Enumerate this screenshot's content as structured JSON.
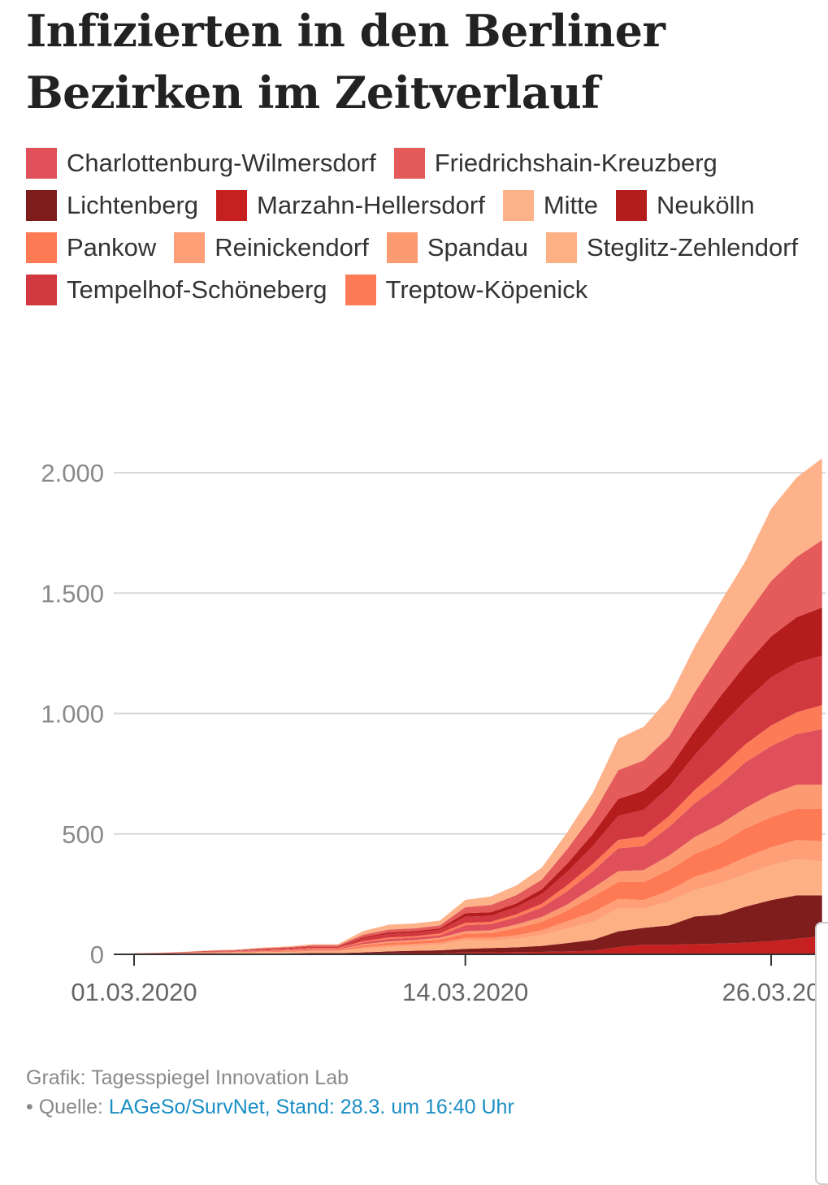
{
  "title": "Infizierten in den Berliner Bezirken im Zeitverlauf",
  "legend": [
    {
      "name": "Charlottenburg-Wilmersdorf",
      "color": "#e0505a"
    },
    {
      "name": "Friedrichshain-Kreuzberg",
      "color": "#e55a5a"
    },
    {
      "name": "Lichtenberg",
      "color": "#7f1d1d"
    },
    {
      "name": "Marzahn-Hellersdorf",
      "color": "#c62020"
    },
    {
      "name": "Mitte",
      "color": "#fdb28a"
    },
    {
      "name": "Neukölln",
      "color": "#b51c1c"
    },
    {
      "name": "Pankow",
      "color": "#fe7a55"
    },
    {
      "name": "Reinickendorf",
      "color": "#fe9f78"
    },
    {
      "name": "Spandau",
      "color": "#fc9a72"
    },
    {
      "name": "Steglitz-Zehlendorf",
      "color": "#fdb083"
    },
    {
      "name": "Tempelhof-Schöneberg",
      "color": "#d2383f"
    },
    {
      "name": "Treptow-Köpenick",
      "color": "#fd7b57"
    }
  ],
  "chart_data": {
    "type": "area",
    "stacked": true,
    "grid": true,
    "x_ticks": [
      "01.03.2020",
      "14.03.2020",
      "26.03.20"
    ],
    "ylim": [
      0,
      2400
    ],
    "y_ticks": [
      0,
      500,
      1000,
      1500,
      2000
    ],
    "y_tick_labels": [
      "0",
      "500",
      "1.000",
      "1.500",
      "2.000"
    ],
    "x": [
      "01.03.2020",
      "02.03.2020",
      "03.03.2020",
      "04.03.2020",
      "05.03.2020",
      "06.03.2020",
      "07.03.2020",
      "08.03.2020",
      "09.03.2020",
      "10.03.2020",
      "11.03.2020",
      "12.03.2020",
      "13.03.2020",
      "14.03.2020",
      "15.03.2020",
      "16.03.2020",
      "17.03.2020",
      "18.03.2020",
      "19.03.2020",
      "20.03.2020",
      "21.03.2020",
      "22.03.2020",
      "23.03.2020",
      "24.03.2020",
      "25.03.2020",
      "26.03.2020",
      "27.03.2020",
      "28.03.2020"
    ],
    "series": [
      {
        "name": "Marzahn-Hellersdorf",
        "values": [
          0,
          0,
          0,
          1,
          1,
          1,
          1,
          2,
          2,
          3,
          4,
          5,
          5,
          8,
          8,
          9,
          10,
          12,
          15,
          30,
          40,
          40,
          42,
          45,
          48,
          55,
          65,
          75
        ]
      },
      {
        "name": "Lichtenberg",
        "values": [
          0,
          1,
          1,
          1,
          2,
          2,
          3,
          3,
          3,
          5,
          8,
          10,
          12,
          15,
          18,
          20,
          25,
          35,
          45,
          65,
          70,
          80,
          115,
          120,
          150,
          170,
          180,
          170
        ]
      },
      {
        "name": "Steglitz-Zehlendorf",
        "values": [
          1,
          1,
          2,
          2,
          3,
          4,
          5,
          6,
          6,
          15,
          18,
          20,
          22,
          35,
          30,
          35,
          45,
          60,
          75,
          95,
          80,
          100,
          110,
          130,
          135,
          145,
          150,
          140
        ]
      },
      {
        "name": "Reinickendorf",
        "values": [
          0,
          0,
          1,
          1,
          1,
          2,
          2,
          3,
          3,
          6,
          8,
          8,
          10,
          10,
          12,
          15,
          20,
          30,
          40,
          40,
          35,
          45,
          55,
          60,
          70,
          75,
          80,
          85
        ]
      },
      {
        "name": "Pankow",
        "values": [
          1,
          1,
          1,
          2,
          2,
          3,
          3,
          4,
          4,
          8,
          10,
          10,
          12,
          18,
          20,
          30,
          35,
          45,
          65,
          70,
          75,
          85,
          95,
          105,
          120,
          125,
          130,
          135
        ]
      },
      {
        "name": "Spandau",
        "values": [
          0,
          0,
          0,
          1,
          1,
          1,
          2,
          2,
          2,
          5,
          6,
          6,
          8,
          10,
          12,
          15,
          20,
          25,
          35,
          45,
          50,
          60,
          70,
          80,
          85,
          95,
          100,
          100
        ]
      },
      {
        "name": "Charlottenburg-Wilmersdorf",
        "values": [
          1,
          1,
          1,
          2,
          2,
          3,
          3,
          4,
          4,
          8,
          10,
          10,
          10,
          25,
          25,
          30,
          40,
          55,
          70,
          95,
          100,
          120,
          140,
          165,
          190,
          200,
          210,
          230
        ]
      },
      {
        "name": "Treptow-Köpenick",
        "values": [
          0,
          0,
          1,
          1,
          1,
          2,
          2,
          3,
          3,
          5,
          6,
          6,
          8,
          10,
          10,
          12,
          15,
          25,
          30,
          35,
          40,
          45,
          55,
          70,
          75,
          85,
          90,
          100
        ]
      },
      {
        "name": "Tempelhof-Schöneberg",
        "values": [
          1,
          1,
          1,
          2,
          2,
          3,
          3,
          4,
          4,
          12,
          15,
          15,
          15,
          25,
          25,
          30,
          40,
          55,
          75,
          100,
          110,
          120,
          145,
          170,
          180,
          200,
          205,
          205
        ]
      },
      {
        "name": "Neukölln",
        "values": [
          0,
          0,
          1,
          1,
          1,
          2,
          2,
          2,
          2,
          5,
          6,
          6,
          6,
          15,
          15,
          15,
          20,
          35,
          50,
          70,
          80,
          80,
          100,
          125,
          150,
          170,
          190,
          200
        ]
      },
      {
        "name": "Friedrichshain-Kreuzberg",
        "values": [
          0,
          1,
          1,
          1,
          2,
          2,
          3,
          4,
          4,
          10,
          12,
          12,
          12,
          25,
          30,
          35,
          40,
          60,
          80,
          120,
          125,
          130,
          160,
          180,
          200,
          230,
          250,
          280
        ]
      },
      {
        "name": "Mitte",
        "values": [
          0,
          1,
          1,
          2,
          2,
          3,
          4,
          5,
          5,
          15,
          20,
          20,
          20,
          30,
          35,
          40,
          50,
          70,
          90,
          130,
          140,
          160,
          190,
          210,
          230,
          300,
          330,
          340
        ]
      }
    ]
  },
  "footer": {
    "credit": "Grafik: Tagesspiegel Innovation Lab",
    "bullet": "•",
    "source_label": "Quelle:",
    "source_link": "LAGeSo/SurvNet, Stand: 28.3. um 16:40 Uhr"
  }
}
